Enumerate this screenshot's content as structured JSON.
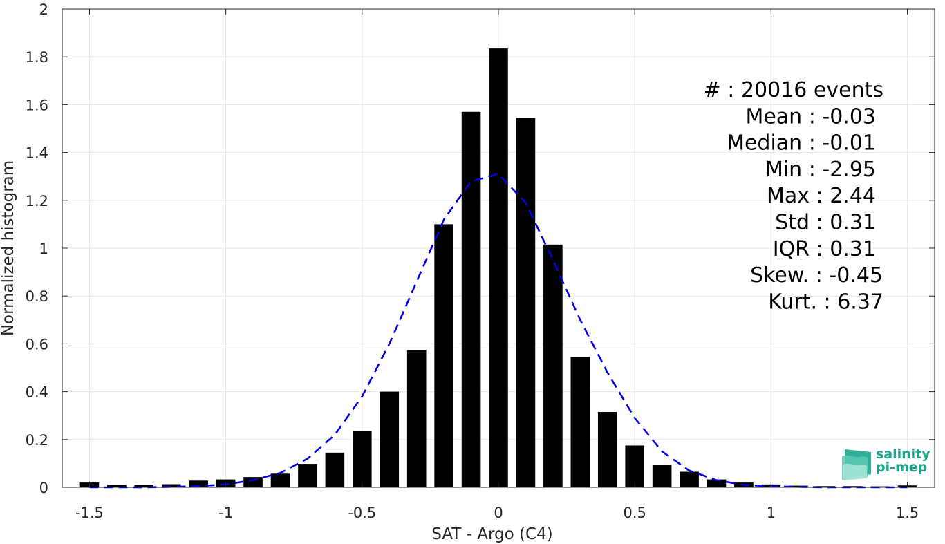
{
  "chart_data": {
    "type": "bar",
    "title": "",
    "xlabel": "SAT - Argo (C4)",
    "ylabel": "Normalized histogram",
    "xlim": [
      -1.6,
      1.6
    ],
    "ylim": [
      0,
      2
    ],
    "grid": true,
    "xticks": [
      -1.5,
      -1,
      -0.5,
      0,
      0.5,
      1,
      1.5
    ],
    "xtick_labels": [
      "-1.5",
      "-1",
      "-0.5",
      "0",
      "0.5",
      "1",
      "1.5"
    ],
    "yticks": [
      0,
      0.2,
      0.4,
      0.6,
      0.8,
      1,
      1.2,
      1.4,
      1.6,
      1.8,
      2
    ],
    "ytick_labels": [
      "0",
      "0.2",
      "0.4",
      "0.6",
      "0.8",
      "1",
      "1.2",
      "1.4",
      "1.6",
      "1.8",
      "2"
    ],
    "bar_width": 0.07,
    "bar_color": "#000000",
    "bars": {
      "x": [
        -1.5,
        -1.4,
        -1.3,
        -1.2,
        -1.1,
        -1.0,
        -0.9,
        -0.8,
        -0.7,
        -0.6,
        -0.5,
        -0.4,
        -0.3,
        -0.2,
        -0.1,
        0.0,
        0.1,
        0.2,
        0.3,
        0.4,
        0.5,
        0.6,
        0.7,
        0.8,
        0.9,
        1.0,
        1.1,
        1.2,
        1.3,
        1.4,
        1.5
      ],
      "values": [
        0.02,
        0.01,
        0.01,
        0.013,
        0.028,
        0.033,
        0.043,
        0.057,
        0.098,
        0.145,
        0.235,
        0.4,
        0.575,
        1.1,
        1.57,
        1.835,
        1.545,
        1.015,
        0.545,
        0.315,
        0.175,
        0.095,
        0.065,
        0.033,
        0.02,
        0.012,
        0.007,
        0.005,
        0.005,
        0.004,
        0.008
      ]
    },
    "fit_curve": {
      "style": "dashed",
      "color": "#0000e0",
      "x": [
        -1.5,
        -1.4,
        -1.3,
        -1.2,
        -1.1,
        -1.0,
        -0.9,
        -0.8,
        -0.7,
        -0.6,
        -0.5,
        -0.4,
        -0.3,
        -0.2,
        -0.1,
        0.0,
        0.1,
        0.2,
        0.3,
        0.4,
        0.5,
        0.6,
        0.7,
        0.8,
        0.9,
        1.0,
        1.1,
        1.2,
        1.3,
        1.4,
        1.5
      ],
      "values": [
        0.0,
        0.0,
        0.0,
        0.002,
        0.005,
        0.012,
        0.03,
        0.06,
        0.12,
        0.22,
        0.38,
        0.6,
        0.86,
        1.12,
        1.28,
        1.31,
        1.19,
        0.95,
        0.7,
        0.48,
        0.29,
        0.15,
        0.07,
        0.03,
        0.01,
        0.004,
        0.002,
        0.0,
        0.0,
        0.0,
        0.0
      ]
    },
    "annotations": [
      "#  : 20016 events",
      "Mean : -0.03",
      "Median : -0.01",
      "Min : -2.95",
      "Max : 2.44",
      "Std : 0.31",
      "IQR : 0.31",
      "Skew. : -0.45",
      "Kurt. : 6.37"
    ]
  },
  "logo": {
    "line1": "salinity",
    "line2": "pi-mep",
    "icon": "salinity-wave-icon",
    "color": "#1aa58c"
  }
}
